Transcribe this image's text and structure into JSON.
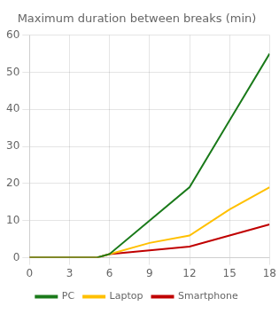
{
  "chart_data": {
    "type": "line",
    "title": "Maximum duration between breaks (min)",
    "x": [
      0,
      3,
      5,
      6,
      9,
      12,
      15,
      18
    ],
    "series": [
      {
        "name": "PC",
        "color": "#1a7a1a",
        "values": [
          0,
          0,
          0,
          1,
          10,
          19,
          37,
          55
        ]
      },
      {
        "name": "Laptop",
        "color": "#ffc000",
        "values": [
          0,
          0,
          0,
          1,
          4,
          6,
          13,
          19
        ]
      },
      {
        "name": "Smartphone",
        "color": "#c00000",
        "values": [
          0,
          0,
          0,
          1,
          2,
          3,
          6,
          9
        ]
      }
    ],
    "xlim": [
      0,
      18
    ],
    "ylim": [
      0,
      60
    ],
    "xticks": [
      0,
      3,
      6,
      9,
      12,
      15,
      18
    ],
    "yticks": [
      0,
      10,
      20,
      30,
      40,
      50,
      60
    ],
    "grid": true,
    "legend": "bottom"
  }
}
